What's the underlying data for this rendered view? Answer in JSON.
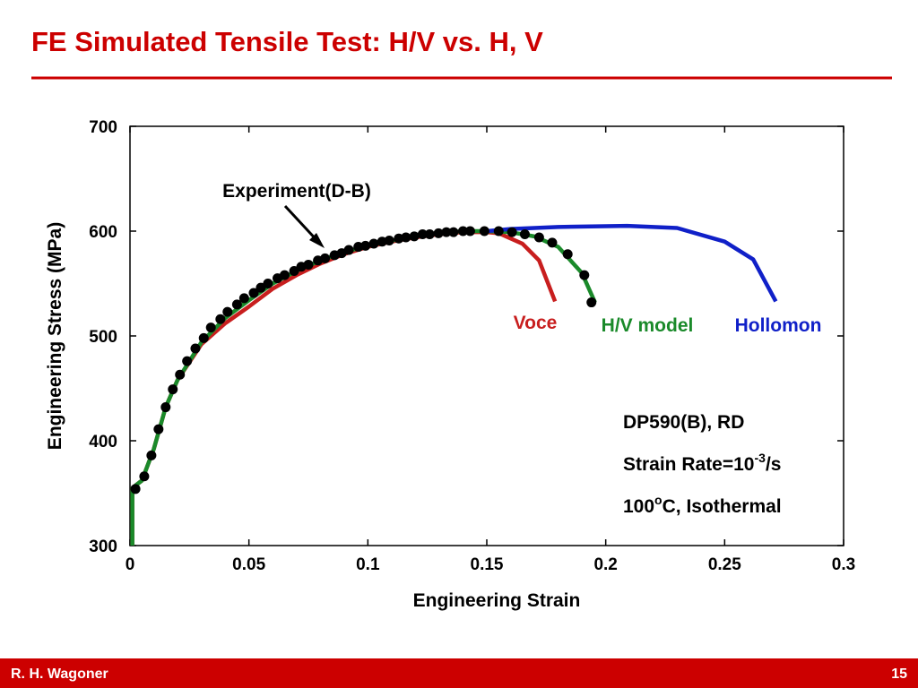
{
  "title": "FE Simulated Tensile Test:  H/V vs. H, V",
  "chart_data": {
    "type": "line",
    "xlabel": "Engineering Strain",
    "ylabel": "Engineering Stress (MPa)",
    "xlim": [
      0,
      0.3
    ],
    "ylim": [
      300,
      700
    ],
    "xticks": [
      0,
      0.05,
      0.1,
      0.15,
      0.2,
      0.25,
      0.3
    ],
    "yticks": [
      300,
      400,
      500,
      600,
      700
    ],
    "series": [
      {
        "name": "Experiment(D-B)",
        "color": "#000000",
        "style": "markers",
        "x": [
          0.0023,
          0.006,
          0.009,
          0.012,
          0.015,
          0.018,
          0.021,
          0.024,
          0.0275,
          0.031,
          0.034,
          0.038,
          0.041,
          0.045,
          0.048,
          0.052,
          0.055,
          0.058,
          0.062,
          0.065,
          0.069,
          0.072,
          0.075,
          0.079,
          0.082,
          0.086,
          0.089,
          0.092,
          0.096,
          0.099,
          0.1025,
          0.106,
          0.109,
          0.113,
          0.116,
          0.1195,
          0.123,
          0.126,
          0.1297,
          0.133,
          0.136,
          0.14,
          0.143,
          0.149,
          0.155,
          0.1606,
          0.166,
          0.172,
          0.1775,
          0.184,
          0.191,
          0.194
        ],
        "y": [
          354,
          366,
          386,
          411,
          432,
          449,
          463,
          476,
          488,
          498,
          508,
          516,
          523,
          530,
          536,
          541,
          546,
          550,
          555,
          558,
          562,
          566,
          568,
          572,
          574,
          577,
          579,
          582,
          585,
          586,
          588,
          590,
          591,
          593,
          594,
          595,
          597,
          597,
          598,
          599,
          599,
          600,
          600,
          600,
          600,
          599,
          597,
          594,
          589,
          578,
          558,
          532
        ]
      },
      {
        "name": "Voce",
        "color": "#c81e1e",
        "style": "line",
        "x": [
          0.001,
          0.001,
          0.005,
          0.01,
          0.015,
          0.02,
          0.03,
          0.04,
          0.05,
          0.06,
          0.07,
          0.08,
          0.09,
          0.1,
          0.11,
          0.12,
          0.13,
          0.14,
          0.15,
          0.155,
          0.165,
          0.172,
          0.1787
        ],
        "y": [
          300,
          355,
          362,
          392,
          432,
          458,
          492,
          512,
          528,
          545,
          558,
          569,
          578,
          585,
          590,
          594,
          597,
          599,
          599,
          598,
          588,
          572,
          533
        ]
      },
      {
        "name": "H/V model",
        "color": "#1a8a2a",
        "style": "line",
        "x": [
          0.001,
          0.001,
          0.005,
          0.01,
          0.015,
          0.02,
          0.03,
          0.04,
          0.05,
          0.06,
          0.07,
          0.08,
          0.09,
          0.1,
          0.11,
          0.12,
          0.13,
          0.14,
          0.15,
          0.16,
          0.17,
          0.18,
          0.19,
          0.1955
        ],
        "y": [
          300,
          355,
          362,
          392,
          432,
          458,
          494,
          517,
          534,
          550,
          562,
          572,
          580,
          586,
          591,
          595,
          598,
          600,
          600,
          599,
          595,
          585,
          560,
          532
        ]
      },
      {
        "name": "Hollomon",
        "color": "#1020c8",
        "style": "line",
        "x": [
          0.15,
          0.16,
          0.18,
          0.209,
          0.23,
          0.25,
          0.262,
          0.2715
        ],
        "y": [
          600,
          602,
          604,
          605,
          603,
          590,
          573,
          533
        ]
      }
    ],
    "notes": [
      {
        "text": "DP590(B), RD"
      },
      {
        "text": "Strain Rate=10",
        "sup": "-3",
        "after": "/s"
      },
      {
        "text": "100",
        "sup": "o",
        "after": "C, Isothermal"
      }
    ]
  },
  "footer": {
    "author": "R. H. Wagoner",
    "page": "15"
  }
}
